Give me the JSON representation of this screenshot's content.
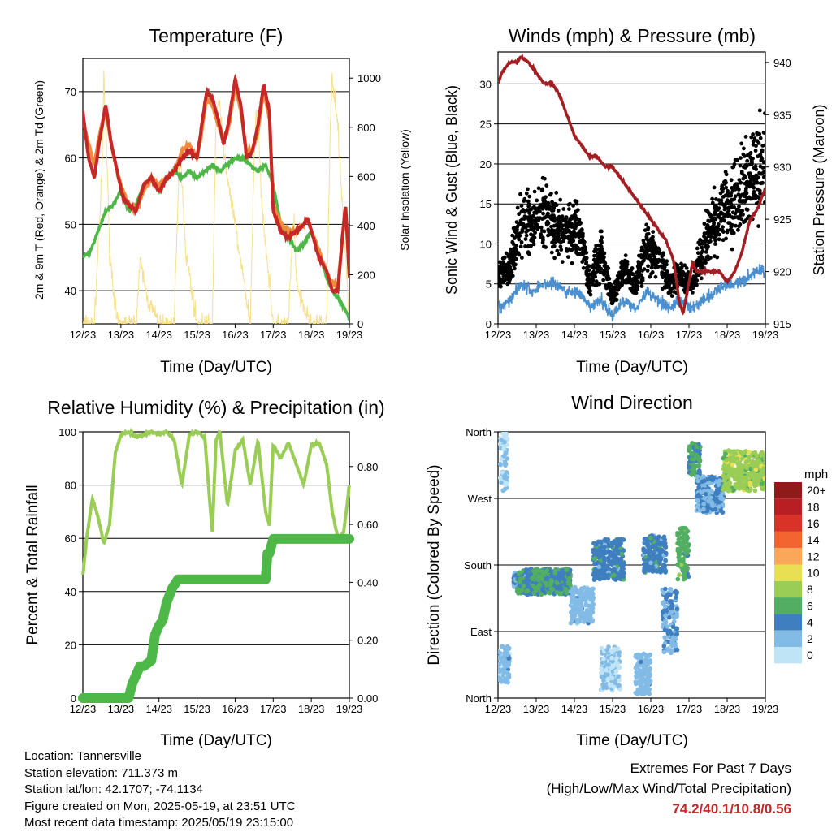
{
  "colors": {
    "temp_red": "#c62828",
    "temp_orange": "#f08a3c",
    "dewpoint": "#4db848",
    "solar": "#f8e08a",
    "wind": "#000000",
    "gust_sonic": "#4a90d0",
    "pressure": "#a31e22",
    "rh": "#9acd55",
    "precip": "#4db848",
    "grid": "#000000"
  },
  "x_ticks": [
    "12/23",
    "13/23",
    "14/23",
    "15/23",
    "16/23",
    "17/23",
    "18/23",
    "19/23"
  ],
  "chart_data": [
    {
      "type": "line",
      "title": "Temperature (F)",
      "xlabel": "Time (Day/UTC)",
      "ylabel": "2m & 9m T (Red, Orange) & 2m Td (Green)",
      "y2label": "Solar Insolation (Yellow)",
      "xlim": [
        12,
        19
      ],
      "ylim": [
        35,
        75
      ],
      "y_ticks": [
        40,
        50,
        60,
        70
      ],
      "y2lim": [
        0,
        1080
      ],
      "y2_ticks": [
        0,
        200,
        400,
        600,
        800,
        1000
      ],
      "grid": true,
      "series": [
        {
          "key": "t2m",
          "x": [
            12.0,
            12.15,
            12.3,
            12.45,
            12.6,
            12.75,
            12.9,
            13.05,
            13.2,
            13.4,
            13.6,
            13.8,
            14.0,
            14.2,
            14.4,
            14.6,
            14.8,
            15.0,
            15.1,
            15.25,
            15.4,
            15.55,
            15.7,
            15.85,
            16.0,
            16.15,
            16.3,
            16.45,
            16.6,
            16.75,
            16.9,
            17.0,
            17.2,
            17.4,
            17.6,
            17.8,
            17.9,
            18.0,
            18.2,
            18.4,
            18.55,
            18.7,
            18.8,
            18.9,
            19.0
          ],
          "y": [
            67,
            60,
            57,
            63,
            68,
            62,
            58,
            54,
            53,
            52,
            56,
            57,
            55,
            57,
            58,
            60,
            61,
            60,
            64,
            70,
            69,
            66,
            62,
            66,
            72,
            68,
            60,
            61,
            65,
            71,
            67,
            52,
            49,
            48,
            49,
            50,
            51,
            49,
            45,
            43,
            40,
            40,
            47,
            53,
            42
          ]
        },
        {
          "key": "t9m",
          "x": [
            12.0,
            12.15,
            12.3,
            12.45,
            12.6,
            12.75,
            12.9,
            13.05,
            13.2,
            13.4,
            13.6,
            13.8,
            14.0,
            14.2,
            14.4,
            14.6,
            14.8,
            15.0,
            15.1,
            15.25,
            15.4,
            15.55,
            15.7,
            15.85,
            16.0,
            16.15,
            16.3,
            16.45,
            16.6,
            16.75,
            16.9,
            17.0,
            17.2,
            17.4,
            17.6,
            17.8,
            17.9,
            18.0,
            18.2,
            18.4,
            18.55,
            18.7,
            18.8,
            18.9,
            19.0
          ],
          "y": [
            66,
            62,
            59,
            64,
            67,
            62,
            58,
            55,
            53,
            52,
            55,
            57,
            56,
            57,
            58,
            61,
            62,
            60,
            63,
            69,
            68,
            65,
            63,
            65,
            71,
            67,
            61,
            61,
            64,
            70,
            66,
            53,
            50,
            49,
            49,
            50,
            51,
            49,
            46,
            43,
            41,
            41,
            47,
            52,
            43
          ]
        },
        {
          "key": "td2m",
          "x": [
            12.0,
            12.2,
            12.4,
            12.6,
            12.8,
            13.0,
            13.2,
            13.4,
            13.6,
            13.8,
            14.0,
            14.2,
            14.4,
            14.6,
            14.8,
            15.0,
            15.2,
            15.4,
            15.6,
            15.8,
            16.0,
            16.2,
            16.4,
            16.6,
            16.8,
            17.0,
            17.2,
            17.4,
            17.6,
            17.8,
            18.0,
            18.2,
            18.4,
            18.55,
            18.7,
            18.9,
            19.0
          ],
          "y": [
            45,
            46,
            49,
            52,
            53,
            55,
            52,
            53,
            56,
            57,
            55,
            57,
            58,
            57,
            58,
            57,
            58,
            59,
            58,
            59,
            60,
            60,
            59,
            58,
            59,
            56,
            50,
            48,
            46,
            47,
            49,
            46,
            42,
            40,
            39,
            37,
            36
          ]
        },
        {
          "key": "solar",
          "axis": "y2",
          "x": [
            12.0,
            12.3,
            12.5,
            12.55,
            12.6,
            12.65,
            12.7,
            12.9,
            13.0,
            13.4,
            13.5,
            13.6,
            13.7,
            14.0,
            14.4,
            14.5,
            14.55,
            14.6,
            14.7,
            15.0,
            15.4,
            15.5,
            15.6,
            15.7,
            16.0,
            16.4,
            16.5,
            16.55,
            16.6,
            16.7,
            17.0,
            17.4,
            17.5,
            17.55,
            17.6,
            17.7,
            18.0,
            18.4,
            18.5,
            18.55,
            18.6,
            18.7,
            19.0
          ],
          "y": [
            0,
            0,
            600,
            1000,
            800,
            600,
            300,
            0,
            0,
            0,
            250,
            180,
            100,
            0,
            0,
            500,
            700,
            600,
            300,
            0,
            0,
            850,
            900,
            700,
            400,
            0,
            700,
            850,
            800,
            500,
            0,
            0,
            350,
            400,
            200,
            100,
            0,
            0,
            800,
            1000,
            950,
            800,
            0
          ]
        }
      ]
    },
    {
      "type": "scatter",
      "title": "Winds (mph) & Pressure (mb)",
      "xlabel": "Time (Day/UTC)",
      "ylabel": "Sonic Wind & Gust (Blue, Black)",
      "y2label": "Station Pressure (Maroon)",
      "xlim": [
        12,
        19
      ],
      "ylim": [
        0,
        34
      ],
      "y_ticks": [
        0,
        5,
        10,
        15,
        20,
        25,
        30
      ],
      "y2lim": [
        915,
        941
      ],
      "y2_ticks": [
        915,
        920,
        925,
        930,
        935,
        940
      ],
      "grid": true,
      "series": [
        {
          "key": "wind_sonic",
          "x": [
            12.0,
            12.3,
            12.6,
            12.9,
            13.2,
            13.5,
            13.8,
            14.1,
            14.4,
            14.7,
            15.0,
            15.3,
            15.6,
            15.9,
            16.2,
            16.5,
            16.8,
            17.1,
            17.4,
            17.7,
            18.0,
            18.3,
            18.6,
            18.9,
            19.0
          ],
          "y": [
            2,
            3,
            5,
            4,
            5,
            5,
            4,
            4,
            2,
            3,
            1,
            3,
            2,
            4,
            3,
            2,
            3,
            2,
            3,
            4,
            5,
            5,
            6,
            7,
            6
          ]
        },
        {
          "key": "gust",
          "x": [
            12.0,
            12.3,
            12.6,
            12.9,
            13.2,
            13.5,
            13.8,
            14.1,
            14.4,
            14.7,
            15.0,
            15.3,
            15.6,
            15.9,
            16.2,
            16.5,
            16.8,
            17.1,
            17.4,
            17.7,
            18.0,
            18.3,
            18.6,
            18.9,
            19.0
          ],
          "y": [
            6,
            7,
            13,
            12,
            14,
            12,
            11,
            12,
            5,
            9,
            3,
            7,
            5,
            10,
            8,
            5,
            6,
            5,
            10,
            13,
            15,
            16,
            18,
            20,
            19
          ]
        },
        {
          "key": "pressure",
          "axis": "y2",
          "x": [
            12.0,
            12.1,
            12.3,
            12.5,
            12.6,
            12.8,
            13.0,
            13.2,
            13.4,
            13.6,
            13.8,
            14.0,
            14.2,
            14.4,
            14.6,
            14.8,
            15.0,
            15.2,
            15.4,
            15.6,
            15.8,
            16.0,
            16.2,
            16.4,
            16.6,
            16.75,
            16.85,
            17.0,
            17.1,
            17.2,
            17.4,
            17.6,
            17.8,
            18.0,
            18.2,
            18.4,
            18.6,
            18.8,
            19.0
          ],
          "y": [
            938,
            939,
            940,
            940,
            940.5,
            940,
            939,
            938,
            938,
            937,
            935,
            933,
            932,
            931,
            931,
            930,
            930,
            929,
            928,
            927,
            926,
            925,
            924,
            923,
            921,
            917,
            916,
            919,
            921,
            920,
            920,
            920,
            920,
            919,
            920,
            922,
            925,
            926,
            928
          ]
        }
      ]
    },
    {
      "type": "line",
      "title": "Relative Humidity (%) & Precipitation (in)",
      "xlabel": "Time (Day/UTC)",
      "ylabel": "Percent & Total Rainfall",
      "xlim": [
        12,
        19
      ],
      "ylim": [
        0,
        100
      ],
      "y_ticks": [
        0,
        20,
        40,
        60,
        80,
        100
      ],
      "y2lim": [
        0,
        0.92
      ],
      "y2_ticks": [
        0.0,
        0.2,
        0.4,
        0.6,
        0.8
      ],
      "y2_tick_labels": [
        "0.00",
        "0.20",
        "0.40",
        "0.60",
        "0.80"
      ],
      "grid": true,
      "series": [
        {
          "key": "rh",
          "x": [
            12.0,
            12.1,
            12.25,
            12.4,
            12.55,
            12.7,
            12.85,
            13.0,
            13.2,
            13.4,
            13.6,
            13.8,
            14.0,
            14.2,
            14.4,
            14.6,
            14.8,
            15.0,
            15.2,
            15.4,
            15.5,
            15.6,
            15.8,
            16.0,
            16.2,
            16.4,
            16.6,
            16.8,
            16.9,
            17.0,
            17.2,
            17.4,
            17.6,
            17.8,
            18.0,
            18.2,
            18.4,
            18.55,
            18.7,
            18.85,
            19.0
          ],
          "y": [
            46,
            60,
            75,
            68,
            58,
            65,
            92,
            99,
            100,
            98,
            99,
            100,
            99,
            100,
            97,
            80,
            99,
            100,
            98,
            62,
            97,
            100,
            72,
            93,
            97,
            80,
            97,
            70,
            65,
            95,
            90,
            96,
            88,
            80,
            95,
            96,
            88,
            70,
            60,
            62,
            80
          ]
        },
        {
          "key": "precip",
          "axis": "y2",
          "x": [
            12.0,
            13.2,
            13.3,
            13.5,
            13.6,
            13.8,
            13.9,
            14.0,
            14.1,
            14.2,
            14.35,
            14.5,
            14.7,
            15.0,
            15.5,
            16.0,
            16.5,
            16.8,
            16.85,
            16.9,
            17.0,
            17.5,
            18.0,
            18.5,
            19.0
          ],
          "y": [
            0,
            0,
            0.05,
            0.11,
            0.11,
            0.13,
            0.22,
            0.25,
            0.27,
            0.33,
            0.38,
            0.41,
            0.41,
            0.41,
            0.41,
            0.41,
            0.41,
            0.41,
            0.5,
            0.5,
            0.55,
            0.55,
            0.55,
            0.55,
            0.55
          ]
        }
      ]
    },
    {
      "type": "scatter",
      "title": "Wind Direction",
      "xlabel": "Time (Day/UTC)",
      "ylabel": "Direction (Colored By Speed)",
      "xlim": [
        12,
        19
      ],
      "ylim": [
        0,
        360
      ],
      "y_ticks": [
        0,
        90,
        180,
        270,
        360
      ],
      "y_tick_labels": [
        "North",
        "East",
        "South",
        "West",
        "North"
      ],
      "grid": true,
      "legend": {
        "title": "mph",
        "labels": [
          "20+",
          "18",
          "16",
          "14",
          "12",
          "10",
          "8",
          "6",
          "4",
          "2",
          "0"
        ],
        "colors": [
          "#8e1a1a",
          "#b81f24",
          "#d93327",
          "#f26430",
          "#f9a85a",
          "#e8e052",
          "#9acd55",
          "#52ae62",
          "#3f7fc0",
          "#82bbe5",
          "#bfe4f6"
        ]
      },
      "groups": [
        {
          "x0": 12.0,
          "x1": 12.3,
          "dir": [
            20,
            70
          ],
          "speed": 2
        },
        {
          "x0": 12.05,
          "x1": 12.25,
          "dir": [
            280,
            360
          ],
          "speed": 1
        },
        {
          "x0": 12.4,
          "x1": 13.0,
          "dir": [
            150,
            170
          ],
          "speed": 3
        },
        {
          "x0": 12.5,
          "x1": 13.9,
          "dir": [
            140,
            175
          ],
          "speed": 5
        },
        {
          "x0": 13.9,
          "x1": 14.5,
          "dir": [
            100,
            150
          ],
          "speed": 2
        },
        {
          "x0": 14.5,
          "x1": 15.3,
          "dir": [
            160,
            215
          ],
          "speed": 4
        },
        {
          "x0": 14.7,
          "x1": 15.2,
          "dir": [
            10,
            70
          ],
          "speed": 1
        },
        {
          "x0": 15.6,
          "x1": 16.0,
          "dir": [
            5,
            60
          ],
          "speed": 2
        },
        {
          "x0": 15.8,
          "x1": 16.4,
          "dir": [
            170,
            220
          ],
          "speed": 4
        },
        {
          "x0": 16.3,
          "x1": 16.7,
          "dir": [
            60,
            150
          ],
          "speed": 3
        },
        {
          "x0": 16.7,
          "x1": 17.0,
          "dir": [
            160,
            230
          ],
          "speed": 6
        },
        {
          "x0": 17.0,
          "x1": 17.3,
          "dir": [
            300,
            345
          ],
          "speed": 5
        },
        {
          "x0": 17.2,
          "x1": 17.9,
          "dir": [
            250,
            300
          ],
          "speed": 3
        },
        {
          "x0": 17.9,
          "x1": 19.0,
          "dir": [
            280,
            335
          ],
          "speed": 8
        }
      ]
    }
  ],
  "info": {
    "location": "Location: Tannersville",
    "elevation": "Station elevation: 711.373 m",
    "latlon": "Station lat/lon: 42.1707; -74.1134",
    "created": "Figure created on Mon, 2025-05-19, at 23:51 UTC",
    "recent": "Most recent data timestamp: 2025/05/19 23:15:00"
  },
  "extremes": {
    "title": "Extremes For Past 7 Days",
    "subtitle": "(High/Low/Max Wind/Total Precipitation)",
    "values": "74.2/40.1/10.8/0.56"
  }
}
